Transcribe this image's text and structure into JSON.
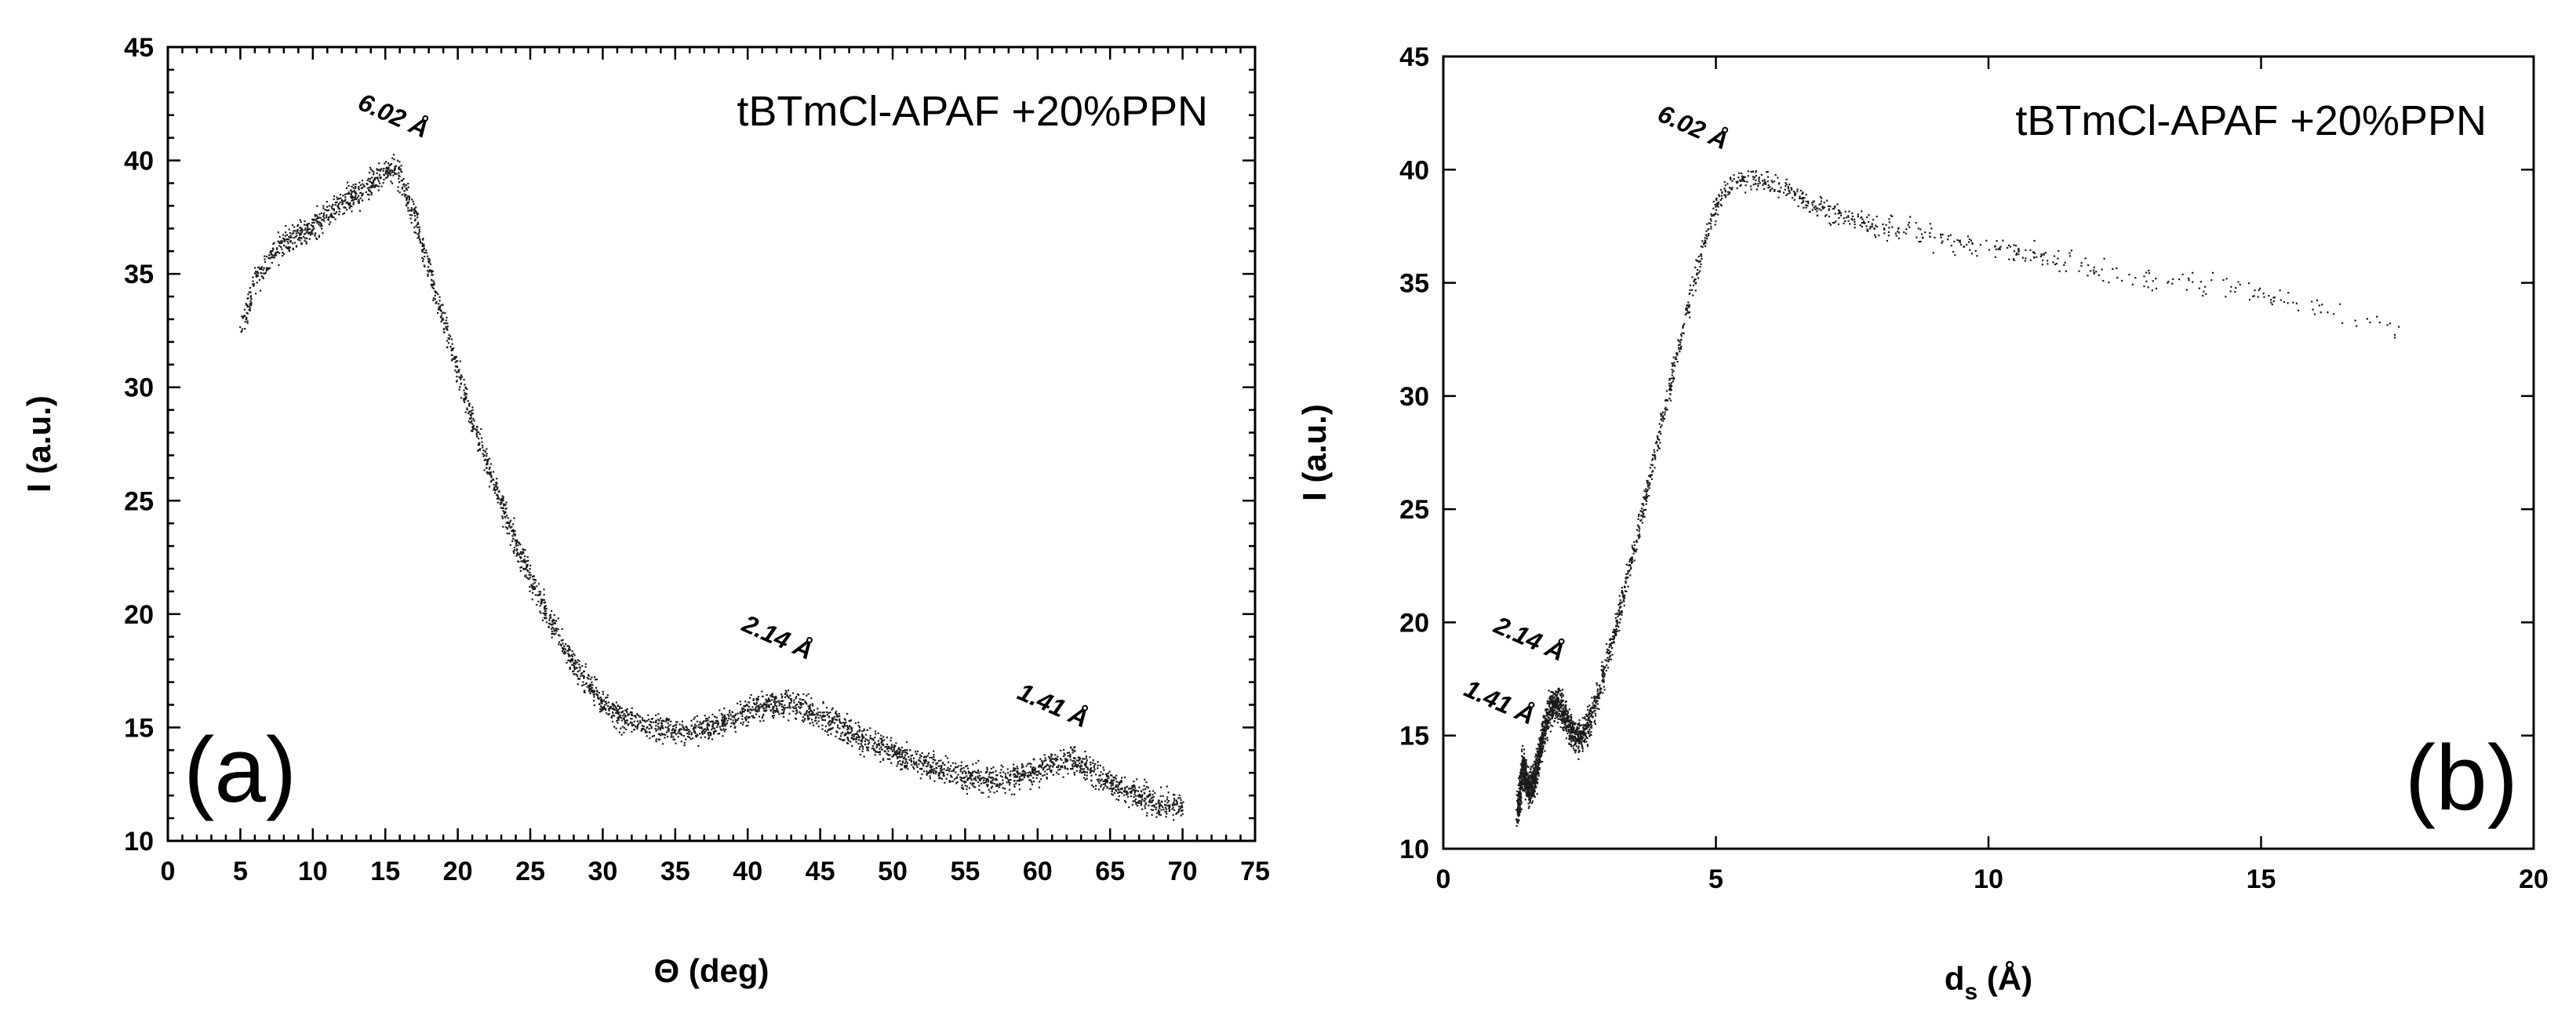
{
  "chart_data": [
    {
      "type": "scatter",
      "panel_label": "(a)",
      "legend": "tBTmCl-APAF +20%PPN",
      "xlabel": "Θ (deg)",
      "ylabel": "I (a.u.)",
      "xlim": [
        0,
        75
      ],
      "ylim": [
        10,
        45
      ],
      "xticks": [
        0,
        5,
        10,
        15,
        20,
        25,
        30,
        35,
        40,
        45,
        50,
        55,
        60,
        65,
        70,
        75
      ],
      "yticks": [
        10,
        15,
        20,
        25,
        30,
        35,
        40,
        45
      ],
      "x_minor_step": 1,
      "y_minor_step": 1,
      "curve": {
        "x": [
          5,
          6,
          7,
          8,
          9,
          10,
          11,
          12,
          13,
          14,
          15,
          15.5,
          16,
          17,
          18,
          19,
          20,
          21,
          22,
          23,
          24,
          25,
          26,
          27,
          28,
          29,
          30,
          31,
          32,
          33,
          34,
          35,
          36,
          37,
          38,
          39,
          40,
          41,
          42,
          43,
          44,
          45,
          46,
          47,
          48,
          49,
          50,
          51,
          52,
          53,
          54,
          55,
          56,
          57,
          58,
          59,
          60,
          61,
          62,
          63,
          64,
          65,
          66,
          67,
          68,
          69,
          70
        ],
        "y": [
          32.5,
          34.8,
          35.8,
          36.4,
          36.8,
          37.1,
          37.6,
          38.1,
          38.6,
          39.1,
          39.6,
          39.7,
          39.3,
          37.4,
          35.2,
          32.9,
          30.6,
          28.5,
          26.6,
          24.8,
          23.1,
          21.5,
          20.2,
          19.0,
          17.8,
          16.9,
          16.1,
          15.6,
          15.3,
          15.1,
          15.0,
          14.9,
          14.9,
          15.0,
          15.2,
          15.5,
          15.8,
          16.0,
          16.1,
          16.0,
          15.8,
          15.5,
          15.2,
          14.8,
          14.5,
          14.2,
          13.9,
          13.6,
          13.4,
          13.2,
          13.0,
          12.9,
          12.8,
          12.7,
          12.8,
          12.9,
          13.1,
          13.4,
          13.6,
          13.4,
          13.0,
          12.6,
          12.3,
          12.0,
          11.8,
          11.6,
          11.5
        ]
      },
      "annotations": [
        {
          "text": "6.02 Å",
          "x": 13.0,
          "y": 42.3,
          "rotate": 24
        },
        {
          "text": "2.14 Å",
          "x": 39.5,
          "y": 19.3,
          "rotate": 24
        },
        {
          "text": "1.41 Å",
          "x": 58.5,
          "y": 16.3,
          "rotate": 24
        }
      ]
    },
    {
      "type": "scatter",
      "panel_label": "(b)",
      "legend": "tBTmCl-APAF +20%PPN",
      "xlabel_main": "d",
      "xlabel_sub": "s",
      "xlabel_unit": " (Å)",
      "ylabel": "I (a.u.)",
      "xlim": [
        0,
        20
      ],
      "ylim": [
        10,
        45
      ],
      "xticks": [
        0,
        5,
        10,
        15,
        20
      ],
      "yticks": [
        10,
        15,
        20,
        25,
        30,
        35,
        40,
        45
      ],
      "curve": {
        "x": [
          1.35,
          1.45,
          1.55,
          1.65,
          1.8,
          1.95,
          2.1,
          2.25,
          2.4,
          2.55,
          2.7,
          2.9,
          3.1,
          3.3,
          3.5,
          3.7,
          3.9,
          4.1,
          4.3,
          4.5,
          4.7,
          4.9,
          5.1,
          5.3,
          5.5,
          5.8,
          6.2,
          6.7,
          7.3,
          8.0,
          9.0,
          10.0,
          11.0,
          12.0,
          13.0,
          14.0,
          15.0,
          16.0,
          17.0,
          17.6
        ],
        "y": [
          11.5,
          13.8,
          12.6,
          13.0,
          14.8,
          16.3,
          16.5,
          15.7,
          15.0,
          15.0,
          15.9,
          17.5,
          19.3,
          21.3,
          23.4,
          25.6,
          27.8,
          30.0,
          32.1,
          34.2,
          36.2,
          37.8,
          38.9,
          39.5,
          39.7,
          39.6,
          39.2,
          38.5,
          37.9,
          37.5,
          37.1,
          36.6,
          36.2,
          35.6,
          35.2,
          34.9,
          34.5,
          34.0,
          33.4,
          32.8
        ]
      },
      "annotations": [
        {
          "text": "6.02 Å",
          "x": 3.9,
          "y": 42.2,
          "rotate": 24
        },
        {
          "text": "2.14 Å",
          "x": 0.9,
          "y": 19.6,
          "rotate": 24
        },
        {
          "text": "1.41 Å",
          "x": 0.35,
          "y": 16.8,
          "rotate": 24
        }
      ]
    }
  ]
}
